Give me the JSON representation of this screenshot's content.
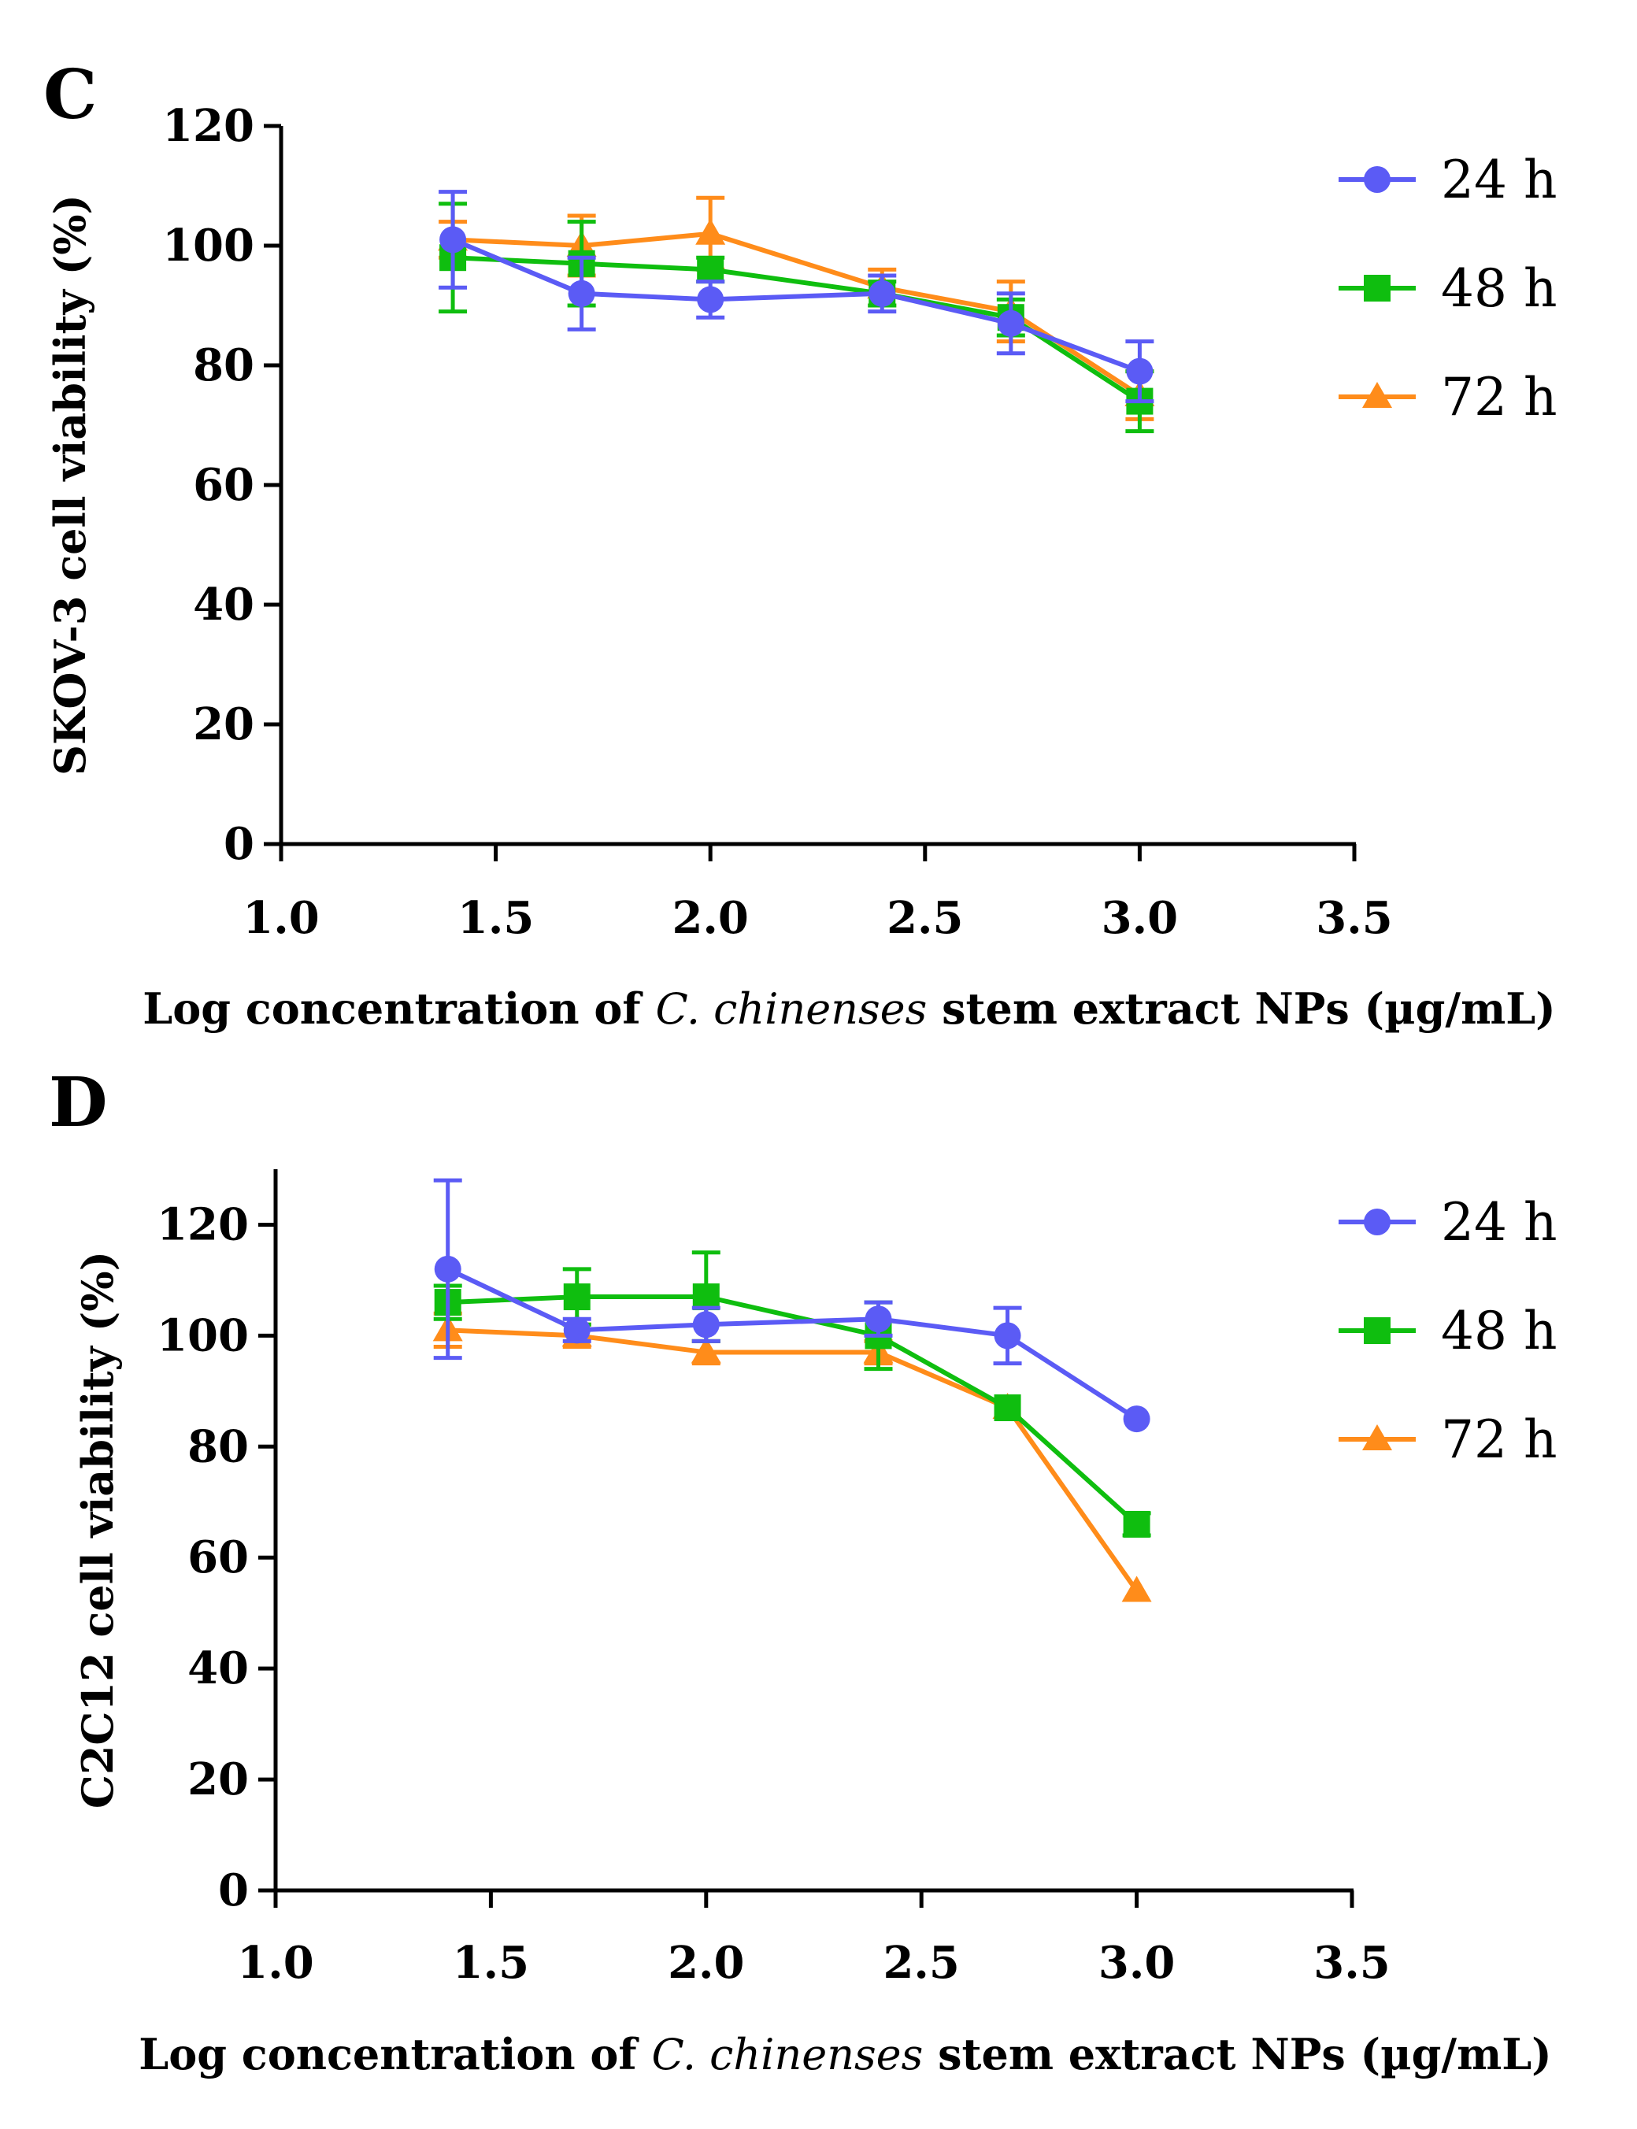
{
  "chart_data": [
    {
      "panel": "C",
      "type": "line",
      "x": [
        1.4,
        1.7,
        2.0,
        2.4,
        2.7,
        3.0
      ],
      "ylabel": "SKOV-3 cell viability (%)",
      "xlabel_prefix": "Log concentration of ",
      "xlabel_italic": "C. chinenses",
      "xlabel_suffix": " stem extract NPs (µg/mL)",
      "xlim": [
        1.0,
        3.5
      ],
      "ylim": [
        0,
        120
      ],
      "xticks": [
        "1.0",
        "1.5",
        "2.0",
        "2.5",
        "3.0",
        "3.5"
      ],
      "yticks": [
        "0",
        "20",
        "40",
        "60",
        "80",
        "100",
        "120"
      ],
      "legend_position": "top-right",
      "series": [
        {
          "name": "24 h",
          "marker": "circle",
          "color": "#5B5BF5",
          "values": [
            101,
            92,
            91,
            92,
            87,
            79
          ],
          "errors": [
            8,
            6,
            3,
            3,
            5,
            5
          ]
        },
        {
          "name": "48 h",
          "marker": "square",
          "color": "#0FBE0F",
          "values": [
            98,
            97,
            96,
            92,
            88,
            74
          ],
          "errors": [
            9,
            7,
            2,
            2,
            3,
            5
          ]
        },
        {
          "name": "72 h",
          "marker": "triangle",
          "color": "#FF8C1A",
          "values": [
            101,
            100,
            102,
            93,
            89,
            75
          ],
          "errors": [
            3,
            5,
            6,
            3,
            5,
            4
          ]
        }
      ]
    },
    {
      "panel": "D",
      "type": "line",
      "x": [
        1.4,
        1.7,
        2.0,
        2.4,
        2.7,
        3.0
      ],
      "ylabel": "C2C12 cell viability (%)",
      "xlabel_prefix": "Log concentration of ",
      "xlabel_italic": "C. chinenses",
      "xlabel_suffix": " stem extract NPs (µg/mL)",
      "xlim": [
        1.0,
        3.5
      ],
      "ylim": [
        0,
        130
      ],
      "xticks": [
        "1.0",
        "1.5",
        "2.0",
        "2.5",
        "3.0",
        "3.5"
      ],
      "yticks": [
        "0",
        "20",
        "40",
        "60",
        "80",
        "100",
        "120"
      ],
      "legend_position": "top-right",
      "series": [
        {
          "name": "24 h",
          "marker": "circle",
          "color": "#5B5BF5",
          "values": [
            112,
            101,
            102,
            103,
            100,
            85
          ],
          "errors": [
            16,
            2,
            3,
            3,
            5,
            0
          ]
        },
        {
          "name": "48 h",
          "marker": "square",
          "color": "#0FBE0F",
          "values": [
            106,
            107,
            107,
            100,
            87,
            66
          ],
          "errors": [
            3,
            5,
            8,
            6,
            0,
            2
          ]
        },
        {
          "name": "72 h",
          "marker": "triangle",
          "color": "#FF8C1A",
          "values": [
            101,
            100,
            97,
            97,
            87,
            54
          ],
          "errors": [
            3,
            2,
            2,
            2,
            0,
            0
          ]
        }
      ]
    }
  ]
}
